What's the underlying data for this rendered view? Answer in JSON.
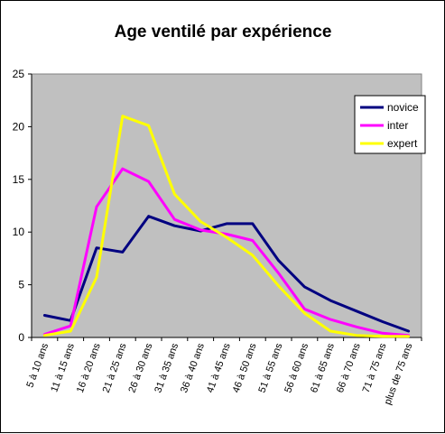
{
  "chart_data": {
    "type": "line",
    "title": "Age ventilé par expérience",
    "xlabel": "",
    "ylabel": "",
    "ylim": [
      0,
      25
    ],
    "yticks": [
      0,
      5,
      10,
      15,
      20,
      25
    ],
    "grid": false,
    "legend_position": "top-right",
    "plot_background": "#c0c0c0",
    "categories": [
      "5 à 10 ans",
      "11 à 15 ans",
      "16 à 20 ans",
      "21 à 25 ans",
      "26 à 30 ans",
      "31 à 35 ans",
      "36 à 40 ans",
      "41 à 45 ans",
      "46 à 50 ans",
      "51 à 55 ans",
      "56 à 60 ans",
      "61 à 65 ans",
      "66 à 70 ans",
      "71 à 75 ans",
      "plus de 75 ans"
    ],
    "series": [
      {
        "name": "novice",
        "color": "#000080",
        "values": [
          2.1,
          1.6,
          8.5,
          8.1,
          11.5,
          10.6,
          10.1,
          10.8,
          10.8,
          7.3,
          4.8,
          3.5,
          2.5,
          1.5,
          0.6
        ]
      },
      {
        "name": "inter",
        "color": "#ff00ff",
        "values": [
          0.3,
          1.1,
          12.4,
          16.0,
          14.8,
          11.2,
          10.2,
          9.8,
          9.2,
          6.1,
          2.7,
          1.7,
          1.0,
          0.4,
          0.2
        ]
      },
      {
        "name": "expert",
        "color": "#ffff00",
        "values": [
          0.2,
          0.6,
          5.7,
          21.0,
          20.1,
          13.6,
          11.0,
          9.5,
          7.8,
          4.9,
          2.3,
          0.6,
          0.2,
          0.1,
          0.1
        ]
      }
    ]
  }
}
